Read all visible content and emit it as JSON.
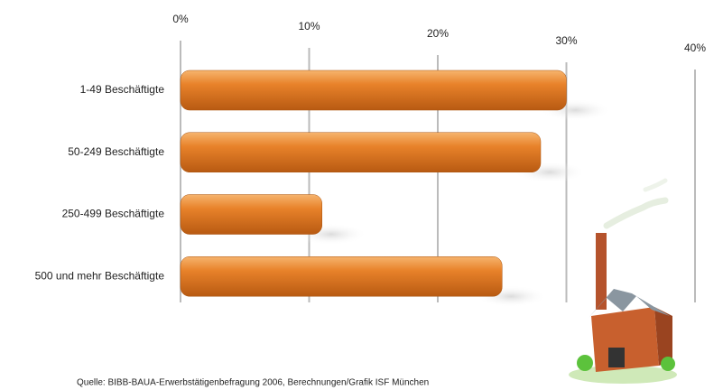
{
  "chart_data": {
    "type": "bar",
    "orientation": "horizontal",
    "categories": [
      "1-49 Beschäftigte",
      "50-249 Beschäftigte",
      "250-499 Beschäftigte",
      "500 und mehr Beschäftigte"
    ],
    "values": [
      30,
      28,
      11,
      25
    ],
    "color": "#e8822a",
    "xlim": [
      0,
      40
    ],
    "xticks": [
      {
        "value": 0,
        "label": "0%"
      },
      {
        "value": 10,
        "label": "10%"
      },
      {
        "value": 20,
        "label": "20%"
      },
      {
        "value": 30,
        "label": "30%"
      },
      {
        "value": 40,
        "label": "40%"
      }
    ],
    "grid": true,
    "source": "Quelle: BIBB-BAUA-Erwerbstätigenbefragung 2006, Berechnungen/Grafik ISF München"
  }
}
